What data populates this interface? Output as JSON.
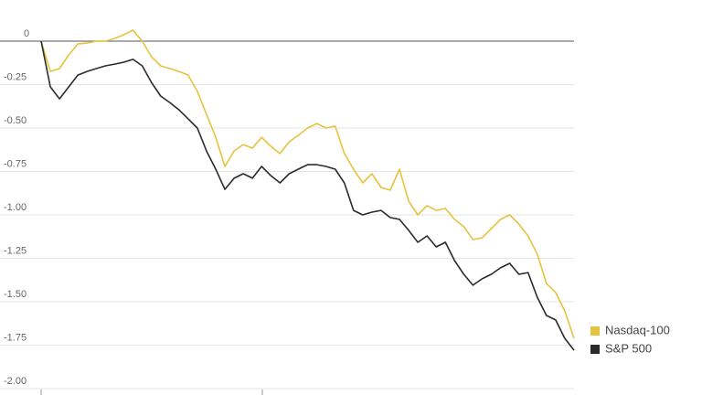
{
  "chart_data": {
    "type": "line",
    "ylim": [
      -2.0,
      0.2
    ],
    "yticks": [
      0,
      -0.25,
      {
        "value": -0.5,
        "label": "-0.50"
      },
      -0.75,
      {
        "value": -1.0,
        "label": "-1.00"
      },
      -1.25,
      {
        "value": -1.5,
        "label": "-1.50"
      },
      -1.75,
      {
        "value": -2.0,
        "label": "-2.00"
      }
    ],
    "grid": true,
    "legend": "right",
    "series": [
      {
        "name": "Nasdaq-100",
        "color": "#e5c33f",
        "values": [
          0,
          -0.174,
          -0.158,
          -0.079,
          -0.016,
          -0.011,
          0,
          0,
          0.016,
          0.037,
          0.063,
          0,
          -0.089,
          -0.142,
          -0.158,
          -0.174,
          -0.195,
          -0.289,
          -0.421,
          -0.553,
          -0.721,
          -0.632,
          -0.595,
          -0.616,
          -0.553,
          -0.605,
          -0.647,
          -0.579,
          -0.542,
          -0.5,
          -0.474,
          -0.5,
          -0.489,
          -0.647,
          -0.737,
          -0.816,
          -0.763,
          -0.842,
          -0.858,
          -0.737,
          -0.921,
          -1.0,
          -0.947,
          -0.974,
          -0.963,
          -1.026,
          -1.068,
          -1.142,
          -1.132,
          -1.079,
          -1.026,
          -1.0,
          -1.053,
          -1.121,
          -1.226,
          -1.395,
          -1.447,
          -1.553,
          -1.711
        ]
      },
      {
        "name": "S&P 500",
        "color": "#2b2b2b",
        "values": [
          0,
          -0.263,
          -0.332,
          -0.263,
          -0.195,
          -0.174,
          -0.158,
          -0.142,
          -0.132,
          -0.121,
          -0.105,
          -0.142,
          -0.237,
          -0.316,
          -0.353,
          -0.395,
          -0.447,
          -0.5,
          -0.632,
          -0.737,
          -0.853,
          -0.789,
          -0.763,
          -0.789,
          -0.721,
          -0.774,
          -0.816,
          -0.763,
          -0.737,
          -0.711,
          -0.711,
          -0.721,
          -0.737,
          -0.816,
          -0.974,
          -1.0,
          -0.984,
          -0.974,
          -1.016,
          -1.026,
          -1.089,
          -1.158,
          -1.121,
          -1.184,
          -1.158,
          -1.263,
          -1.342,
          -1.405,
          -1.368,
          -1.342,
          -1.305,
          -1.279,
          -1.342,
          -1.332,
          -1.474,
          -1.579,
          -1.605,
          -1.711,
          -1.779
        ]
      }
    ]
  }
}
